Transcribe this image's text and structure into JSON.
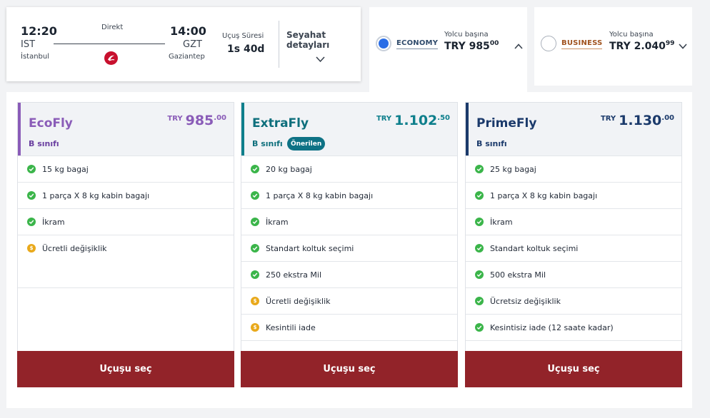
{
  "flight": {
    "departure_time": "12:20",
    "departure_code": "IST",
    "departure_city": "İstanbul",
    "arrival_time": "14:00",
    "arrival_code": "GZT",
    "arrival_city": "Gaziantep",
    "stop_type": "Direkt",
    "duration_label": "Uçuş Süresi",
    "duration_value": "1s 40d",
    "details_label": "Seyahat detayları",
    "airline_icon": "turkish-airlines-logo"
  },
  "cabins": {
    "economy": {
      "name": "ECONOMY",
      "per_pax_label": "Yolcu başına",
      "price_main": "TRY 985",
      "price_decimal": "00",
      "selected": true
    },
    "business": {
      "name": "BUSINESS",
      "per_pax_label": "Yolcu başına",
      "price_main": "TRY 2.040",
      "price_decimal": "99",
      "selected": false
    }
  },
  "fares": [
    {
      "name": "EcoFly",
      "class_label": "B sınıfı",
      "currency": "TRY",
      "price_main": "985",
      "price_decimal": ".00",
      "accent": "#8a5cb8",
      "badge": "",
      "features": [
        {
          "icon": "check-icon",
          "text": "15 kg bagaj"
        },
        {
          "icon": "check-icon",
          "text": "1 parça X 8 kg kabin bagajı"
        },
        {
          "icon": "check-icon",
          "text": "İkram"
        },
        {
          "icon": "fee-icon",
          "text": "Ücretli değişiklik"
        }
      ],
      "button_label": "Uçuşu seç"
    },
    {
      "name": "ExtraFly",
      "class_label": "B sınıfı",
      "currency": "TRY",
      "price_main": "1.102",
      "price_decimal": ".50",
      "accent": "#0e7f8c",
      "badge": "Önerilen",
      "features": [
        {
          "icon": "check-icon",
          "text": "20 kg bagaj"
        },
        {
          "icon": "check-icon",
          "text": "1 parça X 8 kg kabin bagajı"
        },
        {
          "icon": "check-icon",
          "text": "İkram"
        },
        {
          "icon": "check-icon",
          "text": "Standart koltuk seçimi"
        },
        {
          "icon": "check-icon",
          "text": "250 ekstra Mil"
        },
        {
          "icon": "fee-icon",
          "text": "Ücretli değişiklik"
        },
        {
          "icon": "fee-icon",
          "text": "Kesintili iade"
        }
      ],
      "button_label": "Uçuşu seç"
    },
    {
      "name": "PrimeFly",
      "class_label": "B sınıfı",
      "currency": "TRY",
      "price_main": "1.130",
      "price_decimal": ".00",
      "accent": "#1b3a6b",
      "badge": "",
      "features": [
        {
          "icon": "check-icon",
          "text": "25 kg bagaj"
        },
        {
          "icon": "check-icon",
          "text": "1 parça X 8 kg kabin bagajı"
        },
        {
          "icon": "check-icon",
          "text": "İkram"
        },
        {
          "icon": "check-icon",
          "text": "Standart koltuk seçimi"
        },
        {
          "icon": "check-icon",
          "text": "500 ekstra Mil"
        },
        {
          "icon": "check-icon",
          "text": "Ücretsiz değişiklik"
        },
        {
          "icon": "check-icon",
          "text": "Kesintisiz iade (12 saate kadar)"
        }
      ],
      "button_label": "Uçuşu seç"
    }
  ]
}
